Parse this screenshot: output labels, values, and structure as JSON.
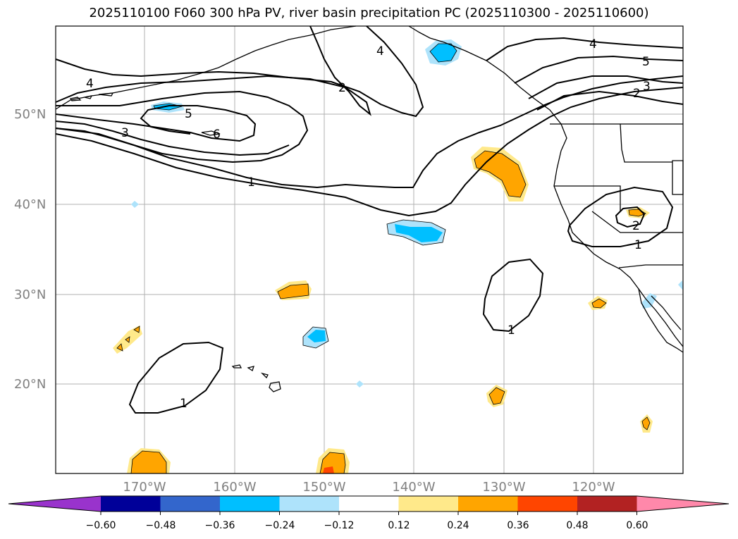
{
  "title": "2025110100 F060 300 hPa PV, river basin precipitation PC (2025110300 - 2025110600)",
  "axes": {
    "lat_ticks": [
      "50°N",
      "40°N",
      "30°N",
      "20°N"
    ],
    "lon_ticks": [
      "170°W",
      "160°W",
      "150°W",
      "140°W",
      "130°W",
      "120°W"
    ]
  },
  "pv_contour_labels": [
    "4",
    "2",
    "4",
    "5",
    "3",
    "2",
    "4",
    "5",
    "6",
    "3",
    "1",
    "2",
    "1",
    "1",
    "1"
  ],
  "colorbar": {
    "ticks": [
      "−0.60",
      "−0.48",
      "−0.36",
      "−0.24",
      "−0.12",
      "0.12",
      "0.24",
      "0.36",
      "0.48",
      "0.60"
    ],
    "colors": [
      "#9933cc",
      "#000099",
      "#3366cc",
      "#00bfff",
      "#aee3fb",
      "#ffffff",
      "#ffe98a",
      "#ffa500",
      "#ff4500",
      "#b22222",
      "#ff88aa"
    ]
  },
  "colors": {
    "neg_strong": "#00bfff",
    "neg_light": "#aee3fb",
    "pos_light": "#ffe98a",
    "pos_mid": "#ffa500",
    "pos_strong": "#ff4500"
  }
}
